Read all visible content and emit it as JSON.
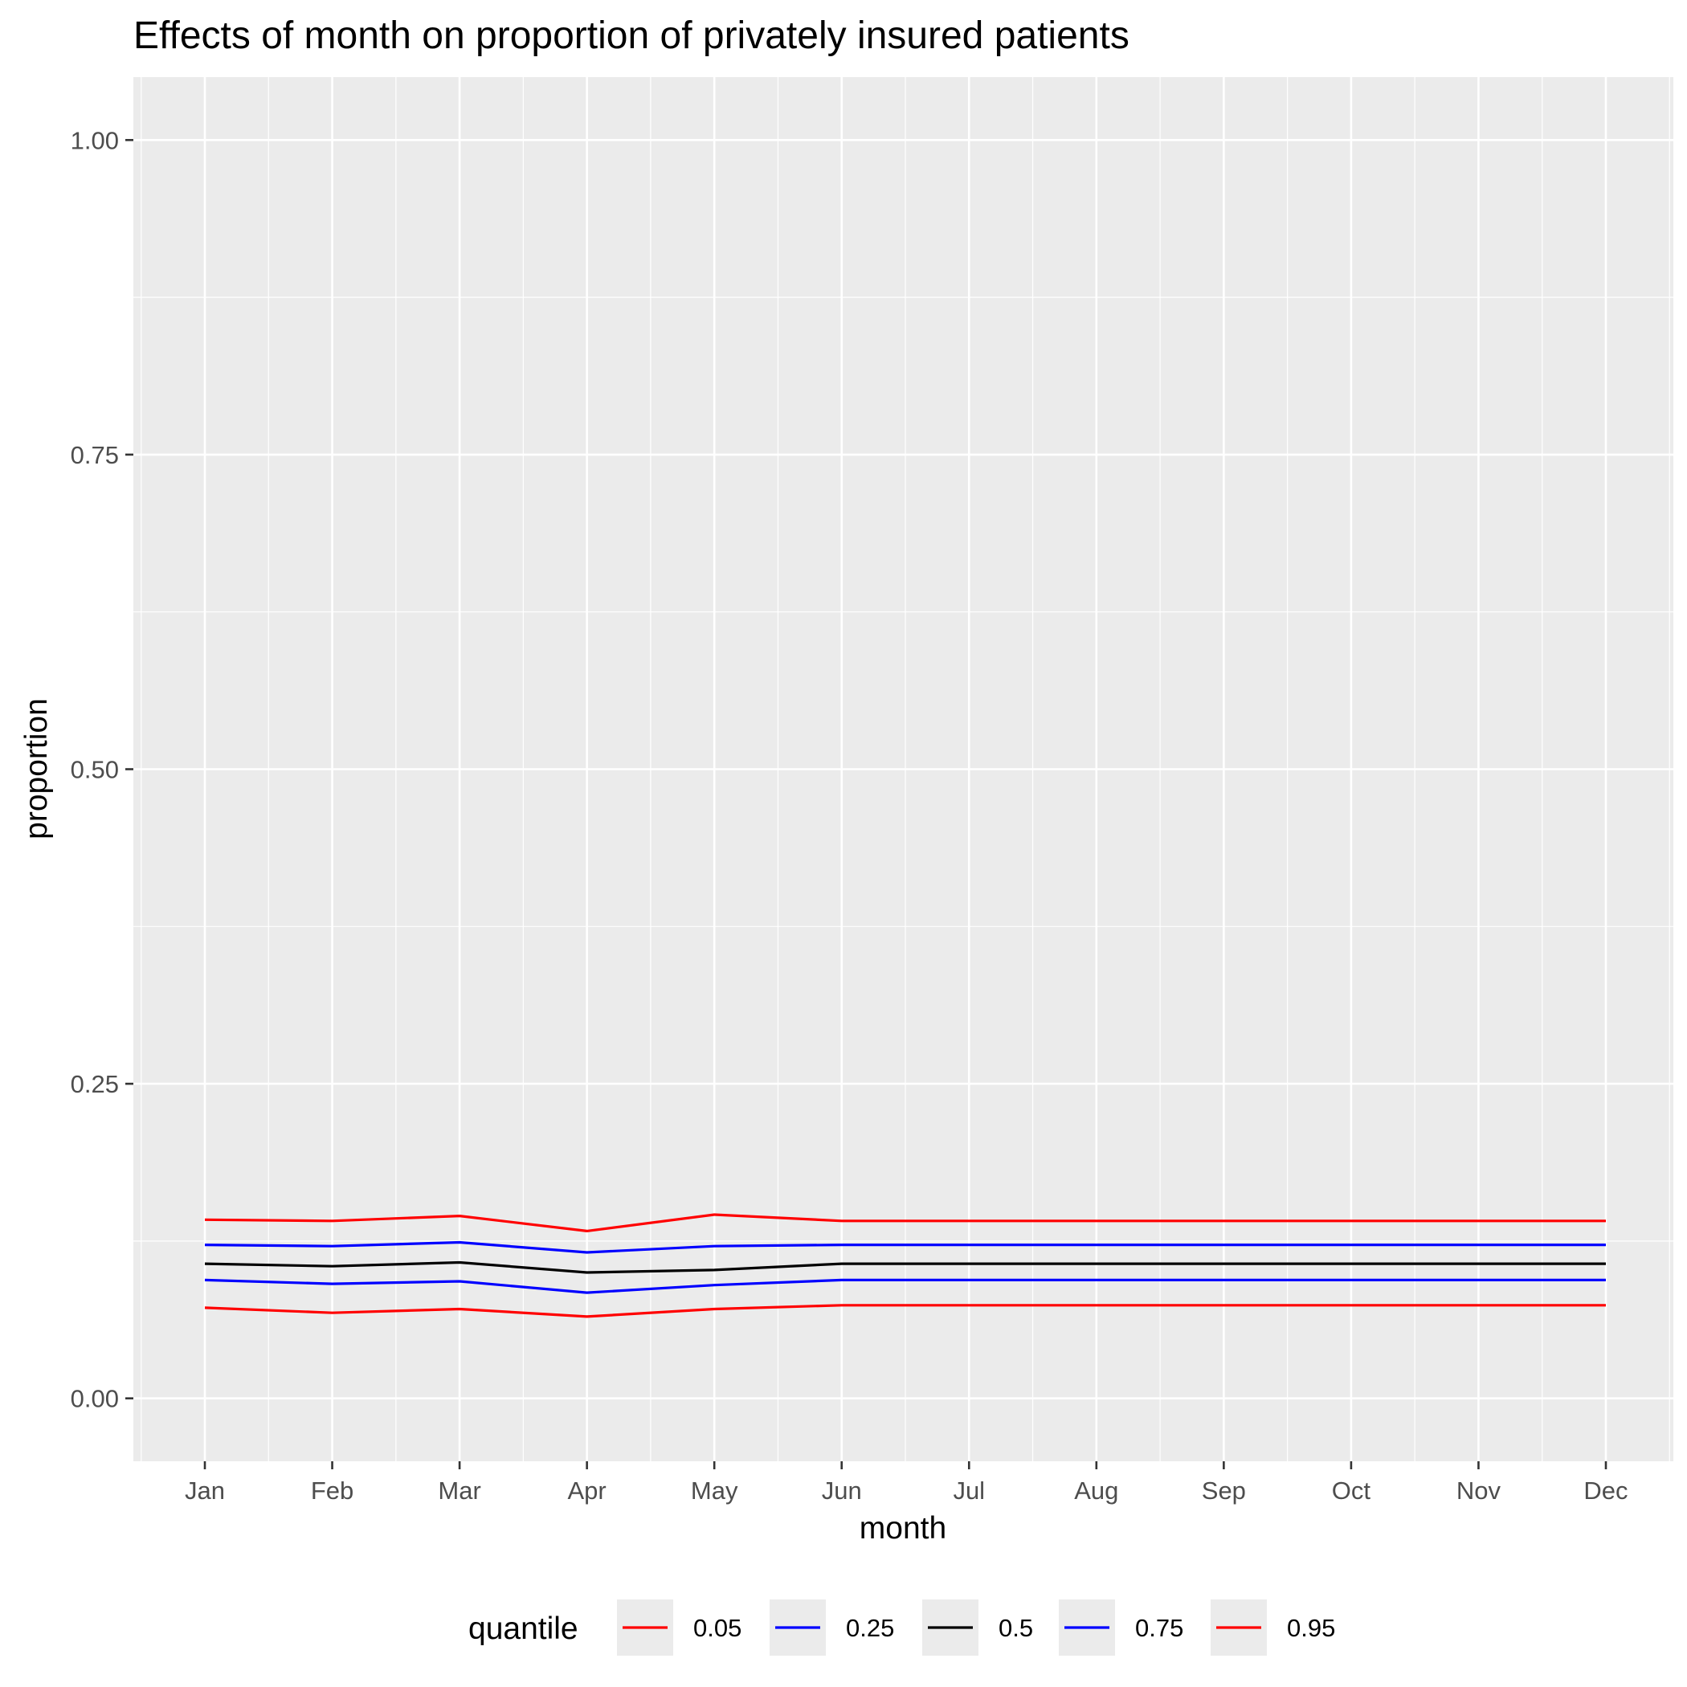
{
  "chart_data": {
    "type": "line",
    "title": "Effects of month on proportion of privately insured patients",
    "xlabel": "month",
    "ylabel": "proportion",
    "categories": [
      "Jan",
      "Feb",
      "Mar",
      "Apr",
      "May",
      "Jun",
      "Jul",
      "Aug",
      "Sep",
      "Oct",
      "Nov",
      "Dec"
    ],
    "ylim": [
      -0.05,
      1.05
    ],
    "yticks": [
      0.0,
      0.25,
      0.5,
      0.75,
      1.0
    ],
    "ytick_labels": [
      "0.00",
      "0.25",
      "0.50",
      "0.75",
      "1.00"
    ],
    "grid": true,
    "legend": {
      "title": "quantile",
      "position": "bottom"
    },
    "series": [
      {
        "name": "0.05",
        "color": "#ff0000",
        "values": [
          0.072,
          0.068,
          0.071,
          0.065,
          0.071,
          0.074,
          0.074,
          0.074,
          0.074,
          0.074,
          0.074,
          0.074
        ]
      },
      {
        "name": "0.25",
        "color": "#0000ff",
        "values": [
          0.094,
          0.091,
          0.093,
          0.084,
          0.09,
          0.094,
          0.094,
          0.094,
          0.094,
          0.094,
          0.094,
          0.094
        ]
      },
      {
        "name": "0.5",
        "color": "#000000",
        "values": [
          0.107,
          0.105,
          0.108,
          0.1,
          0.102,
          0.107,
          0.107,
          0.107,
          0.107,
          0.107,
          0.107,
          0.107
        ]
      },
      {
        "name": "0.75",
        "color": "#0000ff",
        "values": [
          0.122,
          0.121,
          0.124,
          0.116,
          0.121,
          0.122,
          0.122,
          0.122,
          0.122,
          0.122,
          0.122,
          0.122
        ]
      },
      {
        "name": "0.95",
        "color": "#ff0000",
        "values": [
          0.142,
          0.141,
          0.145,
          0.133,
          0.146,
          0.141,
          0.141,
          0.141,
          0.141,
          0.141,
          0.141,
          0.141
        ]
      }
    ]
  }
}
